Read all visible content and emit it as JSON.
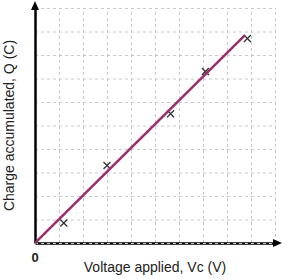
{
  "chart_data": {
    "type": "scatter",
    "x_label": "Voltage applied, Vc (V)",
    "y_label": "Charge accumulated, Q (C)",
    "annotations": [
      {
        "text": "0"
      }
    ],
    "xlim": [
      0,
      10
    ],
    "ylim": [
      0,
      10
    ],
    "xticks": [
      0,
      1,
      2,
      3,
      4,
      5,
      6,
      7,
      8,
      9,
      10
    ],
    "yticks": [
      0,
      1,
      2,
      3,
      4,
      5,
      6,
      7,
      8,
      9,
      10
    ],
    "grid": true,
    "tick_labels": false,
    "series": [
      {
        "type": "scatter",
        "marker": "x",
        "color": "#333333",
        "x": [
          1.2,
          3.0,
          5.65,
          7.1,
          8.85
        ],
        "values": [
          0.85,
          3.3,
          5.5,
          7.3,
          8.7
        ]
      },
      {
        "type": "line",
        "line_style": "solid",
        "color": "#9b2d6f",
        "x": [
          0,
          8.75
        ],
        "values": [
          0,
          8.85
        ]
      }
    ]
  }
}
